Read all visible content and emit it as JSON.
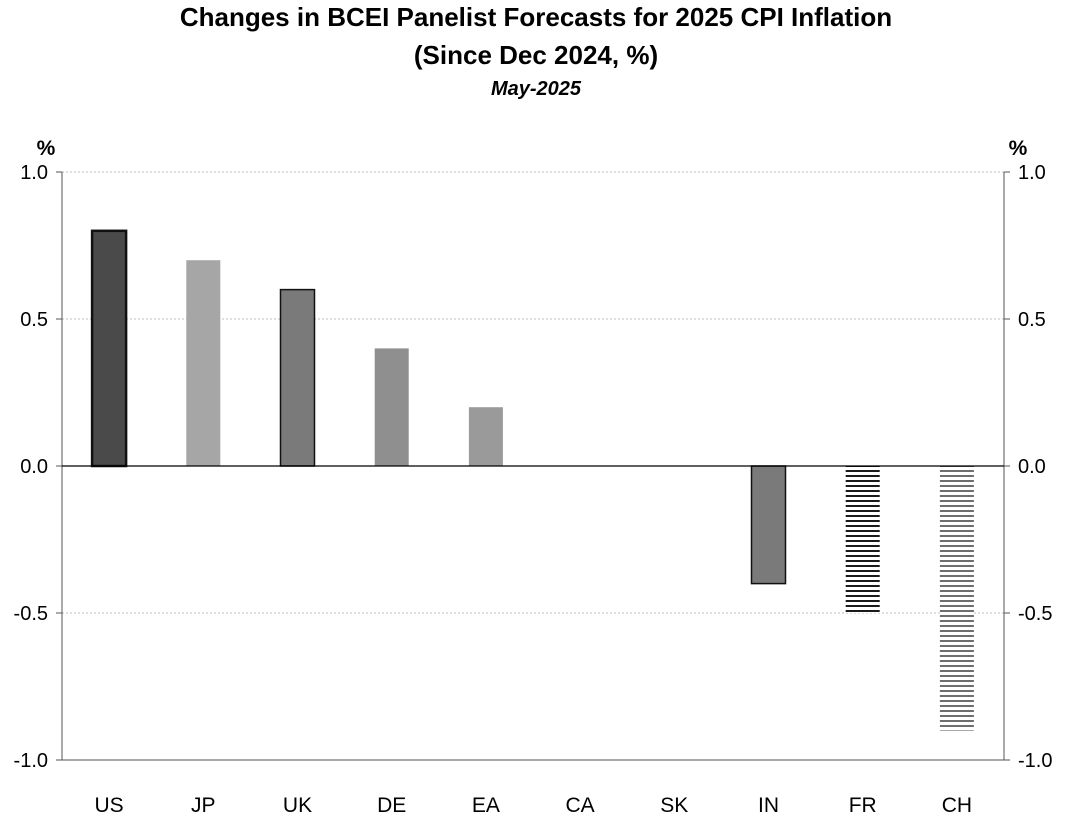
{
  "chart_data": {
    "type": "bar",
    "title": "Changes in BCEI Panelist Forecasts for 2025 CPI Inflation",
    "subtitle": "(Since Dec 2024, %)",
    "date_label": "May-2025",
    "left_unit": "%",
    "right_unit": "%",
    "categories": [
      "US",
      "JP",
      "UK",
      "DE",
      "EA",
      "CA",
      "SK",
      "IN",
      "FR",
      "CH"
    ],
    "values": [
      0.8,
      0.7,
      0.6,
      0.4,
      0.2,
      0.0,
      0.0,
      -0.4,
      -0.5,
      -0.9
    ],
    "fills": [
      "#4a4a4a",
      "#a6a6a6",
      "#7a7a7a",
      "#8f8f8f",
      "#9a9a9a",
      "#808080",
      "#808080",
      "#7a7a7a",
      "hatch-dark",
      "hatch-light"
    ],
    "ylim": [
      -1.0,
      1.0
    ],
    "yticks": [
      1.0,
      0.5,
      0.0,
      -0.5,
      -1.0
    ],
    "ytick_labels": [
      "1.0",
      "0.5",
      "0.0",
      "-0.5",
      "-1.0"
    ],
    "grid": true,
    "right_axis": true
  }
}
